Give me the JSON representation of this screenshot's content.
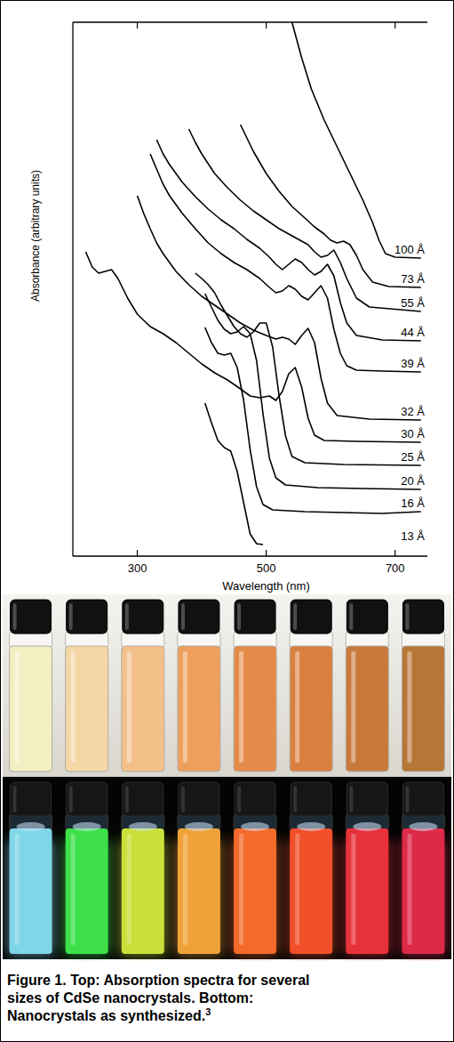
{
  "chart_data": {
    "type": "line",
    "x_label": "Wavelength (nm)",
    "y_label": "Absorbance (arbitrary units)",
    "xlim": [
      200,
      750
    ],
    "xticks": [
      300,
      500,
      700
    ],
    "ylim": [
      0,
      600
    ],
    "yticks": [],
    "tick_labels": "x",
    "color": "#000000",
    "series": [
      {
        "name": "100 Å",
        "x": [
          540,
          555,
          570,
          590,
          610,
          630,
          650,
          665,
          675,
          685,
          700,
          740
        ],
        "values": [
          600,
          560,
          525,
          490,
          460,
          430,
          400,
          375,
          355,
          340,
          336,
          335
        ]
      },
      {
        "name": "73 Å",
        "x": [
          460,
          480,
          500,
          520,
          540,
          560,
          575,
          590,
          600,
          610,
          620,
          630,
          640,
          650,
          665,
          690,
          740
        ],
        "values": [
          485,
          455,
          430,
          410,
          393,
          380,
          370,
          362,
          355,
          352,
          354,
          350,
          338,
          322,
          308,
          303,
          302
        ]
      },
      {
        "name": "55 Å",
        "x": [
          380,
          390,
          400,
          420,
          440,
          460,
          480,
          500,
          520,
          540,
          555,
          565,
          575,
          585,
          595,
          605,
          615,
          625,
          640,
          660,
          740
        ],
        "values": [
          480,
          465,
          452,
          430,
          414,
          400,
          388,
          378,
          368,
          360,
          354,
          350,
          342,
          336,
          338,
          344,
          330,
          312,
          290,
          280,
          275
        ]
      },
      {
        "name": "44 Å",
        "x": [
          330,
          340,
          350,
          370,
          390,
          410,
          430,
          450,
          470,
          490,
          505,
          515,
          525,
          535,
          545,
          555,
          565,
          575,
          585,
          595,
          605,
          615,
          625,
          640,
          680,
          740
        ],
        "values": [
          468,
          452,
          440,
          420,
          404,
          390,
          378,
          368,
          356,
          346,
          336,
          328,
          322,
          328,
          334,
          330,
          322,
          316,
          320,
          328,
          315,
          285,
          262,
          248,
          243,
          242
        ]
      },
      {
        "name": "39 Å",
        "x": [
          320,
          330,
          340,
          350,
          370,
          390,
          410,
          430,
          450,
          470,
          490,
          505,
          515,
          525,
          535,
          545,
          555,
          565,
          575,
          585,
          595,
          605,
          615,
          625,
          640,
          680,
          740
        ],
        "values": [
          452,
          435,
          418,
          405,
          385,
          368,
          352,
          340,
          330,
          322,
          312,
          302,
          296,
          298,
          304,
          300,
          292,
          288,
          296,
          304,
          290,
          255,
          228,
          214,
          209,
          208,
          207
        ]
      },
      {
        "name": "32 Å",
        "x": [
          300,
          310,
          320,
          330,
          340,
          350,
          360,
          380,
          400,
          420,
          440,
          460,
          480,
          500,
          515,
          525,
          535,
          545,
          555,
          565,
          575,
          585,
          595,
          610,
          660,
          740
        ],
        "values": [
          405,
          385,
          368,
          352,
          340,
          330,
          320,
          305,
          292,
          282,
          272,
          262,
          254,
          248,
          244,
          246,
          244,
          238,
          248,
          256,
          240,
          200,
          172,
          158,
          154,
          153
        ]
      },
      {
        "name": "30 Å",
        "x": [
          220,
          230,
          240,
          250,
          260,
          270,
          285,
          300,
          320,
          340,
          360,
          380,
          400,
          420,
          440,
          460,
          475,
          490,
          505,
          515,
          525,
          535,
          545,
          555,
          565,
          575,
          590,
          640,
          740
        ],
        "values": [
          342,
          325,
          318,
          320,
          322,
          312,
          290,
          272,
          258,
          250,
          240,
          228,
          216,
          206,
          198,
          188,
          180,
          178,
          180,
          175,
          185,
          205,
          212,
          190,
          155,
          136,
          130,
          129,
          128
        ]
      },
      {
        "name": "25 Å",
        "x": [
          390,
          400,
          410,
          420,
          430,
          440,
          450,
          460,
          470,
          480,
          490,
          500,
          510,
          520,
          530,
          540,
          560,
          620,
          740
        ],
        "values": [
          318,
          312,
          305,
          296,
          282,
          270,
          258,
          250,
          246,
          252,
          262,
          262,
          235,
          180,
          135,
          112,
          105,
          103,
          102
        ]
      },
      {
        "name": "20 Å",
        "x": [
          405,
          415,
          425,
          435,
          445,
          455,
          465,
          475,
          485,
          495,
          505,
          515,
          530,
          580,
          650,
          740
        ],
        "values": [
          295,
          280,
          265,
          255,
          250,
          252,
          258,
          250,
          220,
          160,
          110,
          88,
          80,
          77,
          76,
          75
        ]
      },
      {
        "name": "16 Å",
        "x": [
          405,
          415,
          425,
          435,
          445,
          455,
          465,
          475,
          485,
          495,
          510,
          560,
          620,
          680,
          740
        ],
        "values": [
          257,
          240,
          228,
          226,
          228,
          212,
          175,
          120,
          78,
          58,
          52,
          50,
          49,
          48,
          50
        ]
      },
      {
        "name": "13 Å",
        "x": [
          405,
          415,
          425,
          435,
          445,
          455,
          465,
          475,
          485,
          495
        ],
        "values": [
          172,
          150,
          130,
          122,
          118,
          95,
          60,
          25,
          14,
          13
        ]
      }
    ]
  },
  "vials": {
    "ambient": [
      "#f3efc2",
      "#f5d7a6",
      "#f4c08a",
      "#ef9f5c",
      "#e58b4a",
      "#d9803f",
      "#c9793a",
      "#b77736"
    ],
    "uv": [
      "#7fd6e8",
      "#3ee04a",
      "#c9e03a",
      "#f0a23a",
      "#f46a2a",
      "#f2502a",
      "#e8323a",
      "#dc2a48"
    ]
  },
  "caption": {
    "label": "Figure 1.",
    "text": "Top: Absorption spectra for several sizes of CdSe nanocrystals. Bottom: Nanocrystals as synthesized.",
    "ref": "3"
  }
}
